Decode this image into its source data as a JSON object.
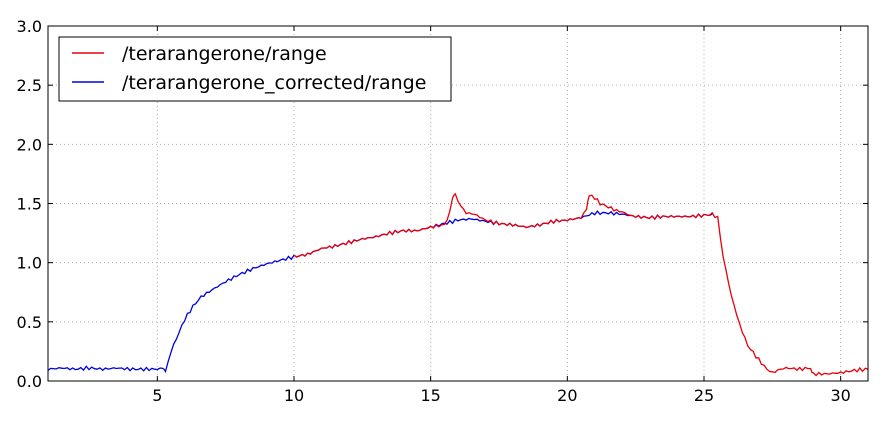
{
  "chart_data": {
    "type": "line",
    "title": "",
    "xlabel": "",
    "ylabel": "",
    "xlim": [
      1,
      31
    ],
    "ylim": [
      0,
      3.0
    ],
    "xticks": [
      5,
      10,
      15,
      20,
      25,
      30
    ],
    "yticks": [
      0.0,
      0.5,
      1.0,
      1.5,
      2.0,
      2.5,
      3.0
    ],
    "xtick_labels": [
      "5",
      "10",
      "15",
      "20",
      "25",
      "30"
    ],
    "ytick_labels": [
      "0.0",
      "0.5",
      "1.0",
      "1.5",
      "2.0",
      "2.5",
      "3.0"
    ],
    "grid": true,
    "legend_position": "top-left",
    "series": [
      {
        "name": "/terarangerone/range",
        "color": "#e8000b",
        "x": [
          10.0,
          10.5,
          11.0,
          11.5,
          12.0,
          12.5,
          13.0,
          13.5,
          14.0,
          14.5,
          15.0,
          15.5,
          15.7,
          15.8,
          15.9,
          16.1,
          16.3,
          16.6,
          17.0,
          17.5,
          18.0,
          18.5,
          19.0,
          19.5,
          20.0,
          20.5,
          20.7,
          20.8,
          21.0,
          21.2,
          21.5,
          21.8,
          22.0,
          22.3,
          22.5,
          23.0,
          23.5,
          24.0,
          24.5,
          25.0,
          25.3,
          25.5,
          25.7,
          26.0,
          26.3,
          26.6,
          27.0,
          27.3,
          27.5,
          27.8,
          28.0,
          28.5,
          28.9,
          29.0,
          29.5,
          30.0,
          30.5,
          31.0
        ],
        "values": [
          1.05,
          1.07,
          1.12,
          1.14,
          1.17,
          1.2,
          1.22,
          1.25,
          1.27,
          1.27,
          1.3,
          1.32,
          1.42,
          1.56,
          1.57,
          1.48,
          1.42,
          1.41,
          1.36,
          1.33,
          1.32,
          1.3,
          1.32,
          1.35,
          1.36,
          1.38,
          1.45,
          1.57,
          1.55,
          1.5,
          1.47,
          1.44,
          1.43,
          1.4,
          1.39,
          1.38,
          1.39,
          1.39,
          1.39,
          1.4,
          1.41,
          1.38,
          1.05,
          0.72,
          0.48,
          0.3,
          0.18,
          0.1,
          0.07,
          0.1,
          0.11,
          0.1,
          0.11,
          0.06,
          0.06,
          0.07,
          0.09,
          0.1
        ]
      },
      {
        "name": "/terarangerone_corrected/range",
        "color": "#0000e0",
        "x": [
          1.0,
          1.5,
          2.0,
          2.5,
          3.0,
          3.5,
          4.0,
          4.5,
          5.0,
          5.2,
          5.3,
          5.5,
          5.7,
          6.0,
          6.3,
          6.6,
          7.0,
          7.5,
          8.0,
          8.5,
          9.0,
          9.5,
          10.0,
          10.5,
          11.0,
          11.5,
          12.0,
          12.5,
          13.0,
          13.5,
          14.0,
          14.5,
          15.0,
          15.5,
          16.0,
          16.5,
          17.0,
          17.5,
          18.0,
          18.5,
          19.0,
          19.5,
          20.0,
          20.5,
          21.0,
          21.5,
          22.0,
          22.5,
          23.0,
          23.5,
          24.0,
          24.5,
          25.0,
          25.3
        ],
        "values": [
          0.1,
          0.11,
          0.1,
          0.11,
          0.1,
          0.11,
          0.1,
          0.1,
          0.1,
          0.11,
          0.08,
          0.25,
          0.36,
          0.52,
          0.63,
          0.71,
          0.77,
          0.84,
          0.9,
          0.95,
          0.99,
          1.02,
          1.05,
          1.07,
          1.12,
          1.14,
          1.17,
          1.2,
          1.22,
          1.25,
          1.27,
          1.27,
          1.3,
          1.33,
          1.36,
          1.37,
          1.35,
          1.33,
          1.32,
          1.3,
          1.32,
          1.35,
          1.36,
          1.38,
          1.42,
          1.42,
          1.41,
          1.39,
          1.38,
          1.39,
          1.39,
          1.39,
          1.4,
          1.41
        ]
      }
    ]
  }
}
